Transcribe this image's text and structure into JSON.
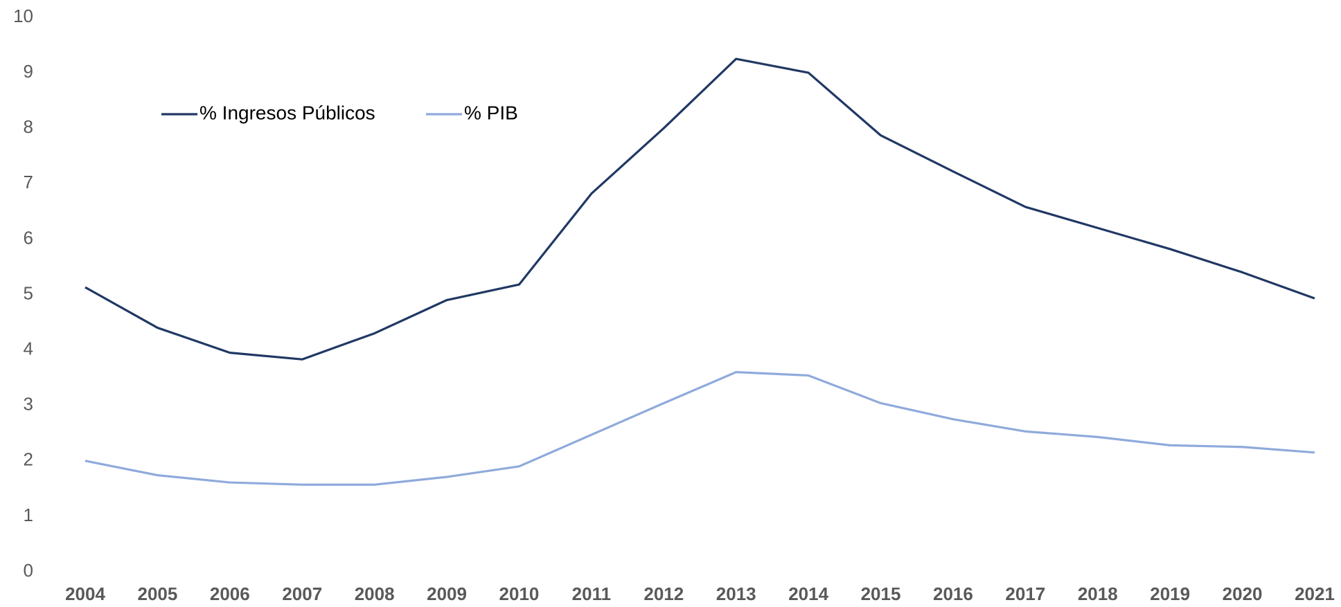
{
  "chart_data": {
    "type": "line",
    "categories": [
      "2004",
      "2005",
      "2006",
      "2007",
      "2008",
      "2009",
      "2010",
      "2011",
      "2012",
      "2013",
      "2014",
      "2015",
      "2016",
      "2017",
      "2018",
      "2019",
      "2020",
      "2021"
    ],
    "series": [
      {
        "name": "% Ingresos Públicos",
        "color": "#203864",
        "values": [
          5.13,
          4.4,
          3.95,
          3.83,
          4.3,
          4.9,
          5.18,
          6.82,
          8.0,
          9.25,
          9.0,
          7.87,
          7.22,
          6.58,
          6.2,
          5.82,
          5.4,
          4.93
        ]
      },
      {
        "name": "% PIB",
        "color": "#8faadc",
        "values": [
          2.0,
          1.74,
          1.61,
          1.57,
          1.57,
          1.71,
          1.9,
          2.47,
          3.04,
          3.6,
          3.54,
          3.04,
          2.75,
          2.53,
          2.43,
          2.28,
          2.25,
          2.15
        ]
      }
    ],
    "ylim": [
      0,
      10
    ],
    "yticks": [
      0,
      1,
      2,
      3,
      4,
      5,
      6,
      7,
      8,
      9,
      10
    ],
    "grid": false,
    "legend": "top-left"
  }
}
